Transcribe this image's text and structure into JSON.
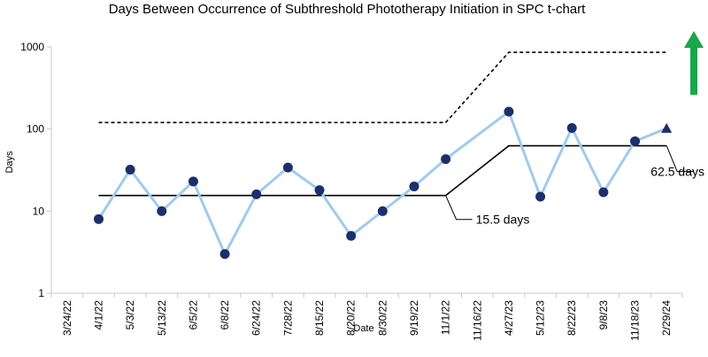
{
  "chart_data": {
    "type": "line",
    "title": "Days Between Occurrence of Subthreshold Phototherapy Initiation in SPC t-chart",
    "xlabel": "Date",
    "ylabel": "Days",
    "y_scale": "log",
    "ylim": [
      1,
      1000
    ],
    "y_ticks": [
      "1",
      "10",
      "100",
      "1000"
    ],
    "categories": [
      "3/24/22",
      "4/1/22",
      "5/3/22",
      "5/13/22",
      "6/5/22",
      "6/8/22",
      "6/24/22",
      "7/28/22",
      "8/15/22",
      "8/20/22",
      "8/30/22",
      "9/19/22",
      "11/1/22",
      "11/16/22",
      "4/27/23",
      "5/12/23",
      "8/22/23",
      "9/8/23",
      "11/18/23",
      "2/29/24"
    ],
    "series": [
      {
        "role": "data",
        "color": "#9ecbef",
        "marker_color": "#1b2f6b",
        "values": [
          null,
          8,
          32,
          10,
          23,
          3,
          16,
          34,
          18,
          5,
          10,
          20,
          43,
          null,
          163,
          15,
          103,
          17,
          71,
          102
        ],
        "markers": [
          "none",
          "circle",
          "circle",
          "circle",
          "circle",
          "circle",
          "circle",
          "circle",
          "circle",
          "circle",
          "circle",
          "circle",
          "circle",
          "none",
          "circle",
          "circle",
          "circle",
          "circle",
          "circle",
          "triangle"
        ]
      },
      {
        "role": "center-line",
        "style": "solid",
        "color": "#000000",
        "values": [
          null,
          15.5,
          15.5,
          15.5,
          15.5,
          15.5,
          15.5,
          15.5,
          15.5,
          15.5,
          15.5,
          15.5,
          15.5,
          null,
          62.5,
          62.5,
          62.5,
          62.5,
          62.5,
          62.5
        ]
      },
      {
        "role": "upper-control-limit",
        "style": "dashed",
        "color": "#000000",
        "values": [
          null,
          120,
          120,
          120,
          120,
          120,
          120,
          120,
          120,
          120,
          120,
          120,
          120,
          null,
          860,
          860,
          860,
          860,
          860,
          860
        ]
      }
    ],
    "annotations": [
      {
        "text": "15.5 days",
        "category": "11/1/22",
        "value": 15.5
      },
      {
        "text": "62.5 days",
        "category": "2/29/24",
        "value": 62.5
      }
    ],
    "indicator": {
      "shape": "arrow-up",
      "color": "#1aa64a"
    },
    "grid": false,
    "legend": "none"
  }
}
